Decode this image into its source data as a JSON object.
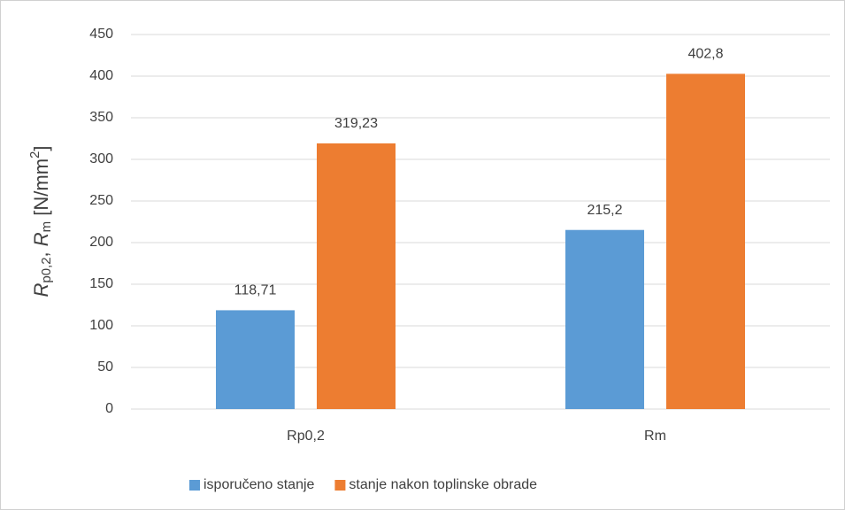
{
  "chart_data": {
    "type": "bar",
    "ylabel": [
      {
        "text": "R",
        "style": "italic"
      },
      {
        "text": "p0,2",
        "style": "sub"
      },
      {
        "text": ", ",
        "style": "normal"
      },
      {
        "text": "R",
        "style": "italic"
      },
      {
        "text": "m",
        "style": "sub"
      },
      {
        "text": " [N/mm",
        "style": "normal"
      },
      {
        "text": "2",
        "style": "sup"
      },
      {
        "text": "]",
        "style": "normal"
      }
    ],
    "categories": [
      "Rp0,2",
      "Rm"
    ],
    "series": [
      {
        "name": "isporučeno stanje",
        "color": "#5b9bd5",
        "values": [
          118.71,
          215.2
        ],
        "value_labels": [
          "118,71",
          "215,2"
        ]
      },
      {
        "name": "stanje nakon toplinske obrade",
        "color": "#ed7d31",
        "values": [
          319.23,
          402.8
        ],
        "value_labels": [
          "319,23",
          "402,8"
        ]
      }
    ],
    "ylim": [
      0,
      450
    ],
    "yticks": [
      0,
      50,
      100,
      150,
      200,
      250,
      300,
      350,
      400,
      450
    ],
    "grid": true,
    "legend": "bottom"
  }
}
